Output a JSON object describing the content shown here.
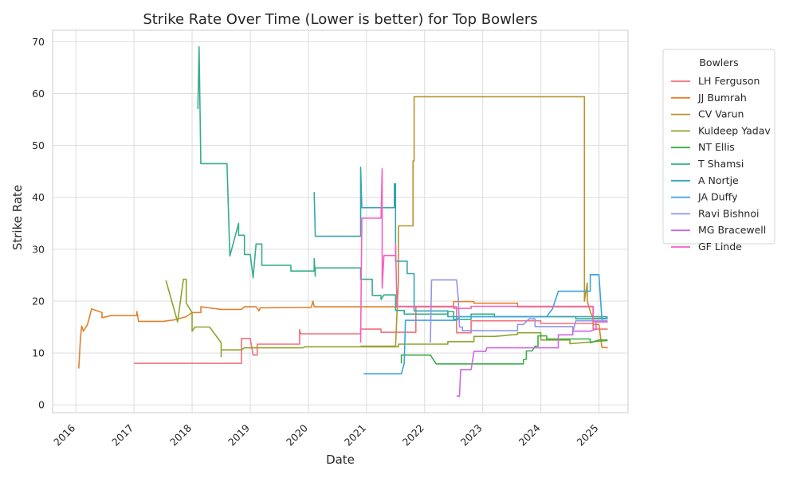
{
  "chart_data": {
    "type": "line",
    "title": "Strike Rate Over Time (Lower is better) for Top Bowlers",
    "xlabel": "Date",
    "ylabel": "Strike Rate",
    "xlim": [
      2015.6,
      2025.5
    ],
    "ylim": [
      -1.5,
      72.2
    ],
    "x_ticks": [
      2016,
      2017,
      2018,
      2019,
      2020,
      2021,
      2022,
      2023,
      2024,
      2025
    ],
    "x_tick_labels": [
      "2016",
      "2017",
      "2018",
      "2019",
      "2020",
      "2021",
      "2022",
      "2023",
      "2024",
      "2025"
    ],
    "y_ticks": [
      0,
      10,
      20,
      30,
      40,
      50,
      60,
      70
    ],
    "y_tick_labels": [
      "0",
      "10",
      "20",
      "30",
      "40",
      "50",
      "60",
      "70"
    ],
    "grid": true,
    "legend": {
      "title": "Bowlers",
      "placement": "outside-right"
    },
    "series": [
      {
        "name": "LH Ferguson",
        "color": "#f0717a",
        "points": [
          [
            2017.0,
            8
          ],
          [
            2018.85,
            8
          ],
          [
            2018.85,
            12.8
          ],
          [
            2019.0,
            12.8
          ],
          [
            2019.05,
            9.6
          ],
          [
            2019.12,
            9.6
          ],
          [
            2019.12,
            11.7
          ],
          [
            2019.85,
            11.7
          ],
          [
            2019.85,
            14.5
          ],
          [
            2019.87,
            13.7
          ],
          [
            2020.9,
            13.7
          ],
          [
            2020.9,
            14.6
          ],
          [
            2021.25,
            14.6
          ],
          [
            2021.25,
            14.0
          ],
          [
            2021.85,
            14.0
          ],
          [
            2021.85,
            18.9
          ],
          [
            2022.55,
            18.9
          ],
          [
            2022.55,
            13.9
          ],
          [
            2022.8,
            13.9
          ],
          [
            2022.8,
            16.2
          ],
          [
            2024.0,
            16.2
          ],
          [
            2024.0,
            15.7
          ],
          [
            2024.9,
            15.7
          ],
          [
            2024.9,
            14.6
          ],
          [
            2025.15,
            14.6
          ]
        ]
      },
      {
        "name": "JJ Bumrah",
        "color": "#e1812c",
        "points": [
          [
            2016.05,
            7
          ],
          [
            2016.08,
            13
          ],
          [
            2016.1,
            15.2
          ],
          [
            2016.13,
            14.2
          ],
          [
            2016.2,
            15.5
          ],
          [
            2016.27,
            18.5
          ],
          [
            2016.45,
            17.8
          ],
          [
            2016.45,
            16.8
          ],
          [
            2016.6,
            17.2
          ],
          [
            2017.05,
            17.2
          ],
          [
            2017.05,
            18.0
          ],
          [
            2017.08,
            16.1
          ],
          [
            2017.5,
            16.1
          ],
          [
            2017.7,
            16.4
          ],
          [
            2017.9,
            17.0
          ],
          [
            2018.0,
            17.8
          ],
          [
            2018.15,
            17.8
          ],
          [
            2018.15,
            18.9
          ],
          [
            2018.5,
            18.4
          ],
          [
            2018.85,
            18.4
          ],
          [
            2018.9,
            18.9
          ],
          [
            2019.1,
            18.9
          ],
          [
            2019.15,
            18.1
          ],
          [
            2019.17,
            18.7
          ],
          [
            2020.05,
            18.8
          ],
          [
            2020.08,
            20.0
          ],
          [
            2020.1,
            18.9
          ],
          [
            2021.0,
            18.9
          ],
          [
            2022.5,
            18.9
          ],
          [
            2022.5,
            19.9
          ],
          [
            2022.85,
            19.9
          ],
          [
            2022.85,
            19.6
          ],
          [
            2023.6,
            19.6
          ],
          [
            2023.6,
            18.9
          ],
          [
            2024.6,
            18.9
          ],
          [
            2024.9,
            18.9
          ],
          [
            2024.9,
            15.5
          ],
          [
            2025.0,
            15.5
          ],
          [
            2025.05,
            11.1
          ],
          [
            2025.15,
            11.0
          ]
        ]
      },
      {
        "name": "CV Varun",
        "color": "#b8942e",
        "points": [
          [
            2020.9,
            11.3
          ],
          [
            2021.5,
            11.3
          ],
          [
            2021.55,
            24.0
          ],
          [
            2021.55,
            34.5
          ],
          [
            2021.8,
            34.5
          ],
          [
            2021.8,
            47.0
          ],
          [
            2021.82,
            47.0
          ],
          [
            2021.82,
            59.4
          ],
          [
            2024.75,
            59.4
          ],
          [
            2024.75,
            20.0
          ],
          [
            2024.8,
            23.5
          ],
          [
            2024.8,
            20.0
          ],
          [
            2024.85,
            18.0
          ],
          [
            2024.9,
            16.7
          ],
          [
            2025.15,
            16.7
          ]
        ]
      },
      {
        "name": "Kuldeep Yadav",
        "color": "#8ea42c",
        "points": [
          [
            2017.55,
            24.0
          ],
          [
            2017.75,
            16.0
          ],
          [
            2017.85,
            24.2
          ],
          [
            2017.9,
            24.2
          ],
          [
            2017.9,
            19.6
          ],
          [
            2018.0,
            17.8
          ],
          [
            2018.0,
            14.2
          ],
          [
            2018.05,
            15.0
          ],
          [
            2018.3,
            15.0
          ],
          [
            2018.5,
            12.0
          ],
          [
            2018.5,
            9.3
          ],
          [
            2018.5,
            10.6
          ],
          [
            2018.85,
            10.6
          ],
          [
            2018.9,
            11.0
          ],
          [
            2019.9,
            11.0
          ],
          [
            2019.95,
            11.2
          ],
          [
            2021.55,
            11.2
          ],
          [
            2021.55,
            11.7
          ],
          [
            2022.4,
            11.7
          ],
          [
            2022.4,
            12.2
          ],
          [
            2022.85,
            12.2
          ],
          [
            2022.85,
            13.2
          ],
          [
            2023.2,
            13.2
          ],
          [
            2023.6,
            13.6
          ],
          [
            2023.6,
            13.9
          ],
          [
            2024.0,
            13.9
          ],
          [
            2024.0,
            12.5
          ],
          [
            2024.5,
            12.5
          ],
          [
            2024.5,
            11.8
          ],
          [
            2025.15,
            12.4
          ]
        ]
      },
      {
        "name": "NT Ellis",
        "color": "#3bab47",
        "points": [
          [
            2021.6,
            8.0
          ],
          [
            2021.6,
            9.6
          ],
          [
            2022.1,
            9.6
          ],
          [
            2022.2,
            7.9
          ],
          [
            2023.7,
            7.9
          ],
          [
            2023.7,
            8.7
          ],
          [
            2023.75,
            8.8
          ],
          [
            2023.75,
            10.4
          ],
          [
            2023.85,
            10.4
          ],
          [
            2023.9,
            11.3
          ],
          [
            2023.95,
            11.3
          ],
          [
            2023.95,
            13.3
          ],
          [
            2024.1,
            13.3
          ],
          [
            2024.1,
            12.7
          ],
          [
            2024.85,
            12.7
          ],
          [
            2024.85,
            12.0
          ],
          [
            2025.0,
            12.5
          ],
          [
            2025.15,
            12.5
          ]
        ]
      },
      {
        "name": "T Shamsi",
        "color": "#34ae8c",
        "points": [
          [
            2018.1,
            57.0
          ],
          [
            2018.12,
            69.0
          ],
          [
            2018.15,
            46.5
          ],
          [
            2018.6,
            46.5
          ],
          [
            2018.65,
            28.7
          ],
          [
            2018.8,
            35.0
          ],
          [
            2018.8,
            32.7
          ],
          [
            2018.9,
            32.7
          ],
          [
            2018.9,
            29.0
          ],
          [
            2019.0,
            29.0
          ],
          [
            2019.05,
            24.5
          ],
          [
            2019.1,
            31.0
          ],
          [
            2019.2,
            31.0
          ],
          [
            2019.2,
            26.9
          ],
          [
            2019.7,
            26.9
          ],
          [
            2019.7,
            25.8
          ],
          [
            2020.1,
            25.8
          ],
          [
            2020.1,
            28.2
          ],
          [
            2020.12,
            24.8
          ],
          [
            2020.12,
            26.4
          ],
          [
            2020.9,
            26.4
          ],
          [
            2020.9,
            24.2
          ],
          [
            2021.1,
            24.2
          ],
          [
            2021.1,
            21.1
          ],
          [
            2021.25,
            21.1
          ],
          [
            2021.25,
            20.3
          ],
          [
            2021.3,
            21.2
          ],
          [
            2021.5,
            21.2
          ],
          [
            2021.5,
            18.2
          ],
          [
            2021.65,
            18.2
          ],
          [
            2021.65,
            17.5
          ],
          [
            2022.4,
            17.5
          ],
          [
            2022.4,
            18.0
          ],
          [
            2022.5,
            18.0
          ],
          [
            2022.5,
            16.5
          ],
          [
            2022.8,
            16.5
          ],
          [
            2022.8,
            17.5
          ],
          [
            2023.2,
            17.5
          ],
          [
            2023.2,
            17.0
          ],
          [
            2024.6,
            17.0
          ],
          [
            2024.6,
            16.6
          ],
          [
            2025.15,
            16.6
          ]
        ]
      },
      {
        "name": "A Nortje",
        "color": "#36a5b0",
        "points": [
          [
            2020.1,
            41.0
          ],
          [
            2020.12,
            32.5
          ],
          [
            2020.9,
            32.5
          ],
          [
            2020.9,
            45.8
          ],
          [
            2020.92,
            38.0
          ],
          [
            2021.48,
            38.0
          ],
          [
            2021.48,
            42.6
          ],
          [
            2021.5,
            42.6
          ],
          [
            2021.5,
            27.7
          ],
          [
            2021.7,
            27.7
          ],
          [
            2021.7,
            25.3
          ],
          [
            2021.82,
            25.3
          ],
          [
            2021.82,
            18.1
          ],
          [
            2022.4,
            18.1
          ],
          [
            2022.4,
            17.0
          ],
          [
            2025.15,
            17.0
          ]
        ]
      },
      {
        "name": "JA Duffy",
        "color": "#3ba3e0",
        "points": [
          [
            2020.95,
            6.0
          ],
          [
            2021.6,
            6.0
          ],
          [
            2021.65,
            8.0
          ],
          [
            2021.67,
            16.3
          ],
          [
            2022.55,
            16.3
          ],
          [
            2022.6,
            17.0
          ],
          [
            2024.1,
            17.0
          ],
          [
            2024.2,
            18.5
          ],
          [
            2024.3,
            21.9
          ],
          [
            2024.85,
            21.9
          ],
          [
            2024.85,
            25.1
          ],
          [
            2025.0,
            25.1
          ],
          [
            2025.05,
            16.5
          ],
          [
            2025.15,
            16.8
          ]
        ]
      },
      {
        "name": "Ravi Bishnoi",
        "color": "#9195ec",
        "points": [
          [
            2022.1,
            12.0
          ],
          [
            2022.12,
            24.1
          ],
          [
            2022.55,
            24.1
          ],
          [
            2022.58,
            20.5
          ],
          [
            2022.6,
            15.0
          ],
          [
            2022.65,
            15.0
          ],
          [
            2022.65,
            14.3
          ],
          [
            2023.6,
            14.3
          ],
          [
            2023.6,
            15.5
          ],
          [
            2023.7,
            15.5
          ],
          [
            2023.8,
            16.6
          ],
          [
            2023.9,
            16.6
          ],
          [
            2023.9,
            15.1
          ],
          [
            2024.55,
            15.1
          ],
          [
            2024.55,
            14.0
          ],
          [
            2024.6,
            16.2
          ],
          [
            2025.15,
            16.2
          ]
        ]
      },
      {
        "name": "MG Bracewell",
        "color": "#d066e3",
        "points": [
          [
            2022.55,
            1.7
          ],
          [
            2022.6,
            1.7
          ],
          [
            2022.62,
            6.8
          ],
          [
            2022.8,
            6.8
          ],
          [
            2022.85,
            10.3
          ],
          [
            2023.05,
            10.3
          ],
          [
            2023.07,
            11.0
          ],
          [
            2024.3,
            11.0
          ],
          [
            2024.3,
            13.5
          ],
          [
            2024.55,
            13.5
          ],
          [
            2024.55,
            14.2
          ],
          [
            2024.85,
            14.2
          ],
          [
            2024.95,
            14.6
          ],
          [
            2024.95,
            16.0
          ],
          [
            2025.15,
            16.0
          ]
        ]
      },
      {
        "name": "GF Linde",
        "color": "#f560c0",
        "points": [
          [
            2020.9,
            12.0
          ],
          [
            2020.92,
            36.0
          ],
          [
            2021.25,
            36.0
          ],
          [
            2021.27,
            45.5
          ],
          [
            2021.27,
            22.5
          ],
          [
            2021.3,
            28.8
          ],
          [
            2021.5,
            28.8
          ],
          [
            2021.5,
            31.0
          ],
          [
            2021.52,
            21.8
          ],
          [
            2021.52,
            19.0
          ],
          [
            2022.5,
            19.0
          ],
          [
            2022.5,
            18.6
          ],
          [
            2022.8,
            18.6
          ],
          [
            2022.8,
            19.0
          ],
          [
            2024.9,
            19.0
          ],
          [
            2024.9,
            16.0
          ],
          [
            2025.15,
            16.0
          ]
        ]
      }
    ]
  }
}
